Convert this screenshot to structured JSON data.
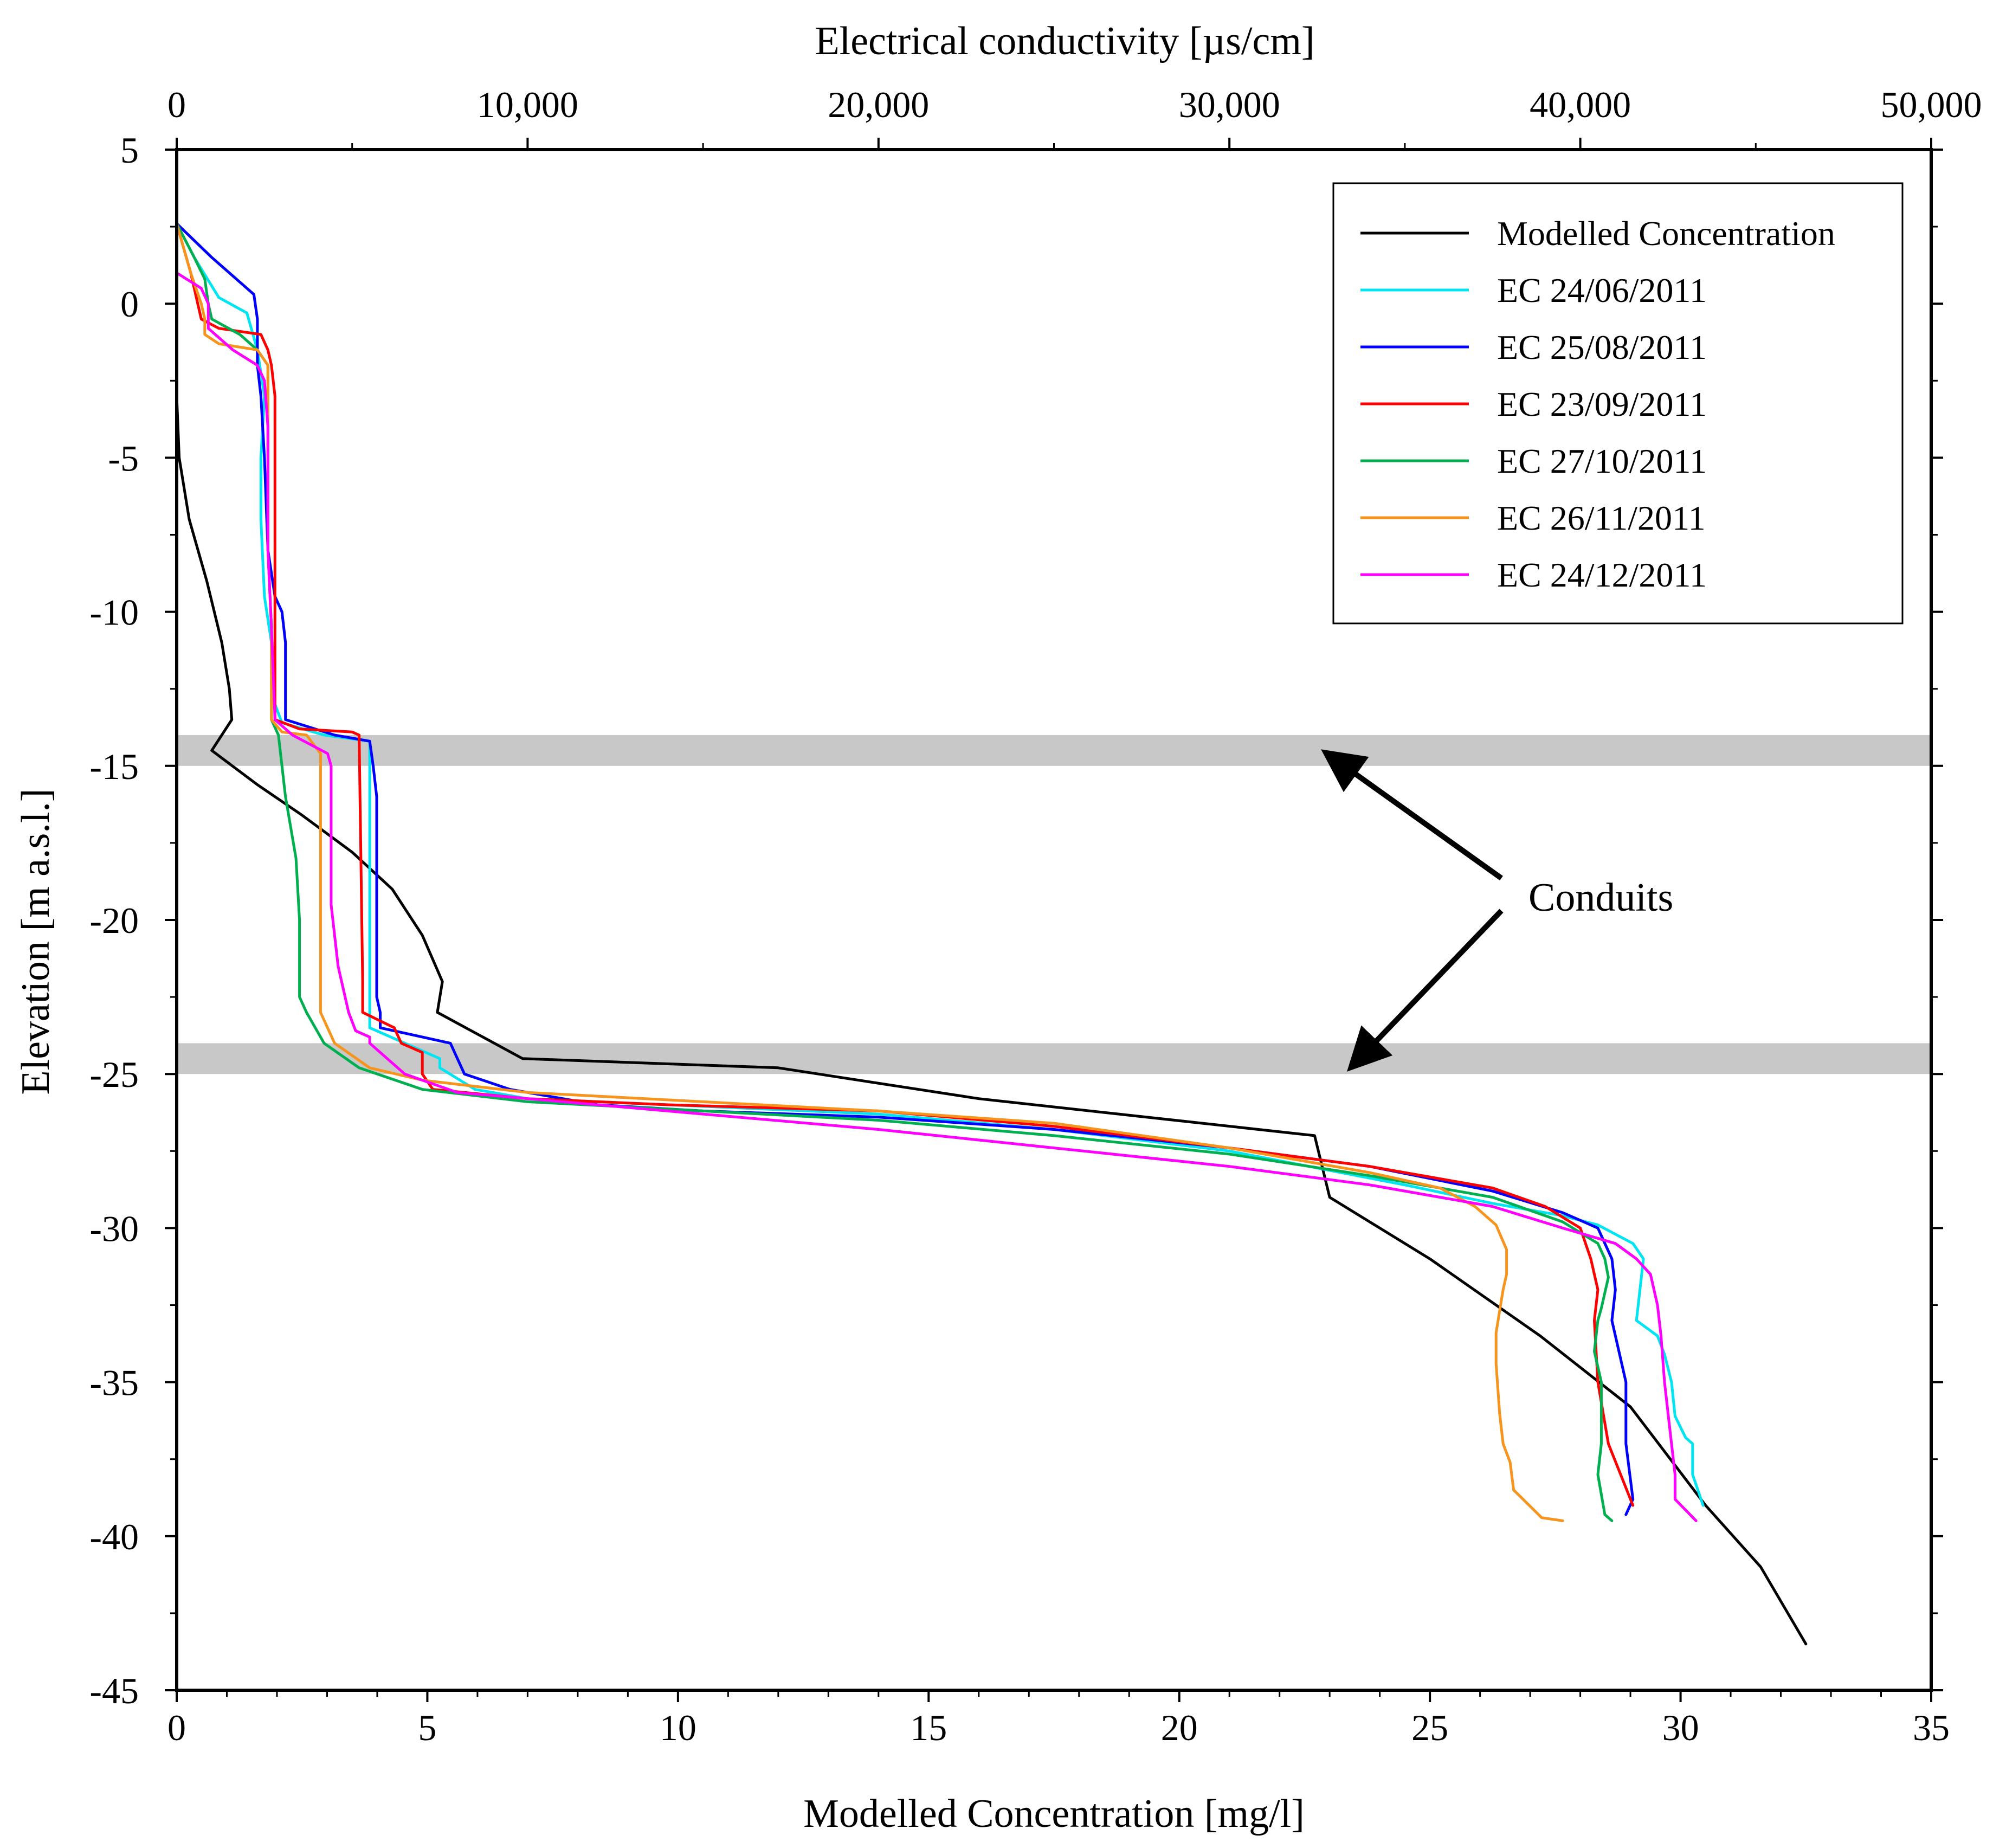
{
  "chart_data": {
    "type": "line",
    "x_bottom": {
      "label": "Modelled Concentration [mg/l]",
      "range": [
        0,
        35
      ],
      "ticks": [
        0,
        5,
        10,
        15,
        20,
        25,
        30,
        35
      ],
      "tick_labels": [
        "0",
        "5",
        "10",
        "15",
        "20",
        "25",
        "30",
        "35"
      ]
    },
    "x_top": {
      "label": "Electrical conductivity [µs/cm]",
      "range": [
        0,
        50000
      ],
      "ticks": [
        0,
        10000,
        20000,
        30000,
        40000,
        50000
      ],
      "tick_labels": [
        "0",
        "10,000",
        "20,000",
        "30,000",
        "40,000",
        "50,000"
      ]
    },
    "y": {
      "label": "Elevation [m a.s.l.]",
      "range": [
        -45,
        5
      ],
      "ticks": [
        5,
        0,
        -5,
        -10,
        -15,
        -20,
        -25,
        -30,
        -35,
        -40,
        -45
      ],
      "tick_labels": [
        "5",
        "0",
        "-5",
        "-10",
        "-15",
        "-20",
        "-25",
        "-30",
        "-35",
        "-40",
        "-45"
      ]
    },
    "legend_position": "top-right",
    "conduit_bands": [
      {
        "from": -15,
        "to": -14
      },
      {
        "from": -25,
        "to": -24
      }
    ],
    "annotation": {
      "text": "Conduits"
    },
    "series": [
      {
        "name": "Modelled Concentration",
        "axis": "bottom",
        "color": "#000000",
        "points": [
          [
            0,
            2.6
          ],
          [
            0,
            -3
          ],
          [
            0.05,
            -5
          ],
          [
            0.25,
            -7
          ],
          [
            0.6,
            -9
          ],
          [
            0.9,
            -11
          ],
          [
            1.05,
            -12.5
          ],
          [
            1.1,
            -13.5
          ],
          [
            0.7,
            -14.5
          ],
          [
            1.6,
            -15.6
          ],
          [
            2.5,
            -16.6
          ],
          [
            3.5,
            -17.8
          ],
          [
            4.3,
            -19
          ],
          [
            4.9,
            -20.5
          ],
          [
            5.3,
            -22
          ],
          [
            5.2,
            -23
          ],
          [
            6.9,
            -24.5
          ],
          [
            12,
            -24.8
          ],
          [
            16,
            -25.8
          ],
          [
            22.7,
            -27
          ],
          [
            23,
            -29
          ],
          [
            25,
            -31
          ],
          [
            27.2,
            -33.5
          ],
          [
            29,
            -35.8
          ],
          [
            30.5,
            -39
          ],
          [
            31.6,
            -41
          ],
          [
            32.5,
            -43.5
          ]
        ]
      },
      {
        "name": "EC 24/06/2011",
        "axis": "top",
        "color": "#00e5f2",
        "points": [
          [
            0,
            2.6
          ],
          [
            500,
            1.5
          ],
          [
            1200,
            0.2
          ],
          [
            2000,
            -0.3
          ],
          [
            2300,
            -1.5
          ],
          [
            2500,
            -3
          ],
          [
            2400,
            -5
          ],
          [
            2400,
            -7
          ],
          [
            2500,
            -9.5
          ],
          [
            2700,
            -11
          ],
          [
            2700,
            -12
          ],
          [
            2800,
            -13
          ],
          [
            3000,
            -13.6
          ],
          [
            4200,
            -14
          ],
          [
            5500,
            -14.2
          ],
          [
            5500,
            -23
          ],
          [
            5500,
            -23.5
          ],
          [
            7500,
            -24.5
          ],
          [
            7500,
            -24.8
          ],
          [
            8500,
            -25.5
          ],
          [
            10000,
            -25.8
          ],
          [
            14000,
            -26
          ],
          [
            20000,
            -26.3
          ],
          [
            25000,
            -26.8
          ],
          [
            30000,
            -27.5
          ],
          [
            35000,
            -28.6
          ],
          [
            37500,
            -29.2
          ],
          [
            39500,
            -29.6
          ],
          [
            40500,
            -29.9
          ],
          [
            41500,
            -30.5
          ],
          [
            41800,
            -31
          ],
          [
            41600,
            -33
          ],
          [
            42200,
            -33.5
          ],
          [
            42400,
            -34.1
          ],
          [
            42600,
            -35
          ],
          [
            42700,
            -36.1
          ],
          [
            43000,
            -36.8
          ],
          [
            43200,
            -37
          ],
          [
            43200,
            -38
          ],
          [
            43500,
            -39
          ]
        ]
      },
      {
        "name": "EC 25/08/2011",
        "axis": "top",
        "color": "#0000ff",
        "points": [
          [
            0,
            2.6
          ],
          [
            1000,
            1.5
          ],
          [
            2200,
            0.3
          ],
          [
            2300,
            -0.5
          ],
          [
            2300,
            -2
          ],
          [
            2400,
            -3
          ],
          [
            2500,
            -5
          ],
          [
            2600,
            -8
          ],
          [
            2800,
            -9.5
          ],
          [
            3000,
            -10
          ],
          [
            3100,
            -11
          ],
          [
            3100,
            -13.5
          ],
          [
            4500,
            -14
          ],
          [
            5500,
            -14.2
          ],
          [
            5600,
            -15
          ],
          [
            5700,
            -16
          ],
          [
            5700,
            -22.5
          ],
          [
            5800,
            -23
          ],
          [
            5800,
            -23.5
          ],
          [
            7800,
            -24
          ],
          [
            8000,
            -24.5
          ],
          [
            8200,
            -25
          ],
          [
            9500,
            -25.5
          ],
          [
            12000,
            -26
          ],
          [
            15000,
            -26.2
          ],
          [
            20000,
            -26.4
          ],
          [
            25000,
            -26.8
          ],
          [
            30000,
            -27.4
          ],
          [
            34000,
            -28
          ],
          [
            37500,
            -28.8
          ],
          [
            39500,
            -29.5
          ],
          [
            40500,
            -30
          ],
          [
            40900,
            -31
          ],
          [
            41000,
            -32
          ],
          [
            40900,
            -33
          ],
          [
            41300,
            -35
          ],
          [
            41300,
            -36
          ],
          [
            41300,
            -37
          ],
          [
            41500,
            -38.8
          ],
          [
            41300,
            -39.3
          ]
        ]
      },
      {
        "name": "EC 23/09/2011",
        "axis": "top",
        "color": "#ff0000",
        "points": [
          [
            0,
            2.6
          ],
          [
            400,
            1
          ],
          [
            700,
            -0.5
          ],
          [
            1200,
            -0.8
          ],
          [
            2400,
            -1
          ],
          [
            2600,
            -1.5
          ],
          [
            2700,
            -2
          ],
          [
            2800,
            -3
          ],
          [
            2800,
            -5
          ],
          [
            2800,
            -8
          ],
          [
            2800,
            -11
          ],
          [
            2800,
            -13.5
          ],
          [
            3500,
            -13.8
          ],
          [
            5000,
            -13.9
          ],
          [
            5200,
            -14
          ],
          [
            5300,
            -22
          ],
          [
            5300,
            -23
          ],
          [
            6200,
            -23.5
          ],
          [
            6400,
            -24
          ],
          [
            7000,
            -24.3
          ],
          [
            7000,
            -25
          ],
          [
            7300,
            -25.5
          ],
          [
            10000,
            -25.8
          ],
          [
            14000,
            -26
          ],
          [
            20000,
            -26.2
          ],
          [
            25000,
            -26.7
          ],
          [
            30000,
            -27.4
          ],
          [
            34000,
            -28
          ],
          [
            37500,
            -28.7
          ],
          [
            39000,
            -29.3
          ],
          [
            40000,
            -30
          ],
          [
            40300,
            -31
          ],
          [
            40500,
            -32
          ],
          [
            40400,
            -33
          ],
          [
            40500,
            -35
          ],
          [
            40800,
            -37
          ],
          [
            41500,
            -39
          ]
        ]
      },
      {
        "name": "EC 27/10/2011",
        "axis": "top",
        "color": "#00b050",
        "points": [
          [
            0,
            2.6
          ],
          [
            500,
            1.5
          ],
          [
            800,
            0.8
          ],
          [
            900,
            0
          ],
          [
            1000,
            -0.5
          ],
          [
            1800,
            -1
          ],
          [
            2300,
            -1.5
          ],
          [
            2600,
            -2
          ],
          [
            2600,
            -4
          ],
          [
            2600,
            -8
          ],
          [
            2700,
            -10.5
          ],
          [
            2700,
            -13.5
          ],
          [
            2900,
            -14
          ],
          [
            3100,
            -16
          ],
          [
            3400,
            -18
          ],
          [
            3500,
            -20
          ],
          [
            3500,
            -22.5
          ],
          [
            3700,
            -23
          ],
          [
            4200,
            -24
          ],
          [
            5200,
            -24.8
          ],
          [
            7000,
            -25.5
          ],
          [
            10000,
            -25.9
          ],
          [
            15000,
            -26.2
          ],
          [
            20000,
            -26.5
          ],
          [
            25000,
            -27
          ],
          [
            30000,
            -27.6
          ],
          [
            34000,
            -28.3
          ],
          [
            37500,
            -29
          ],
          [
            39500,
            -29.8
          ],
          [
            40500,
            -30.5
          ],
          [
            40700,
            -31
          ],
          [
            40800,
            -31.6
          ],
          [
            40600,
            -32.6
          ],
          [
            40500,
            -33
          ],
          [
            40400,
            -34
          ],
          [
            40600,
            -35
          ],
          [
            40600,
            -37
          ],
          [
            40500,
            -38
          ],
          [
            40700,
            -39.3
          ],
          [
            40900,
            -39.5
          ]
        ]
      },
      {
        "name": "EC 26/11/2011",
        "axis": "top",
        "color": "#f7941d",
        "points": [
          [
            0,
            2.6
          ],
          [
            400,
            1
          ],
          [
            700,
            0
          ],
          [
            800,
            -0.5
          ],
          [
            800,
            -1
          ],
          [
            1200,
            -1.3
          ],
          [
            2300,
            -1.5
          ],
          [
            2600,
            -2
          ],
          [
            2600,
            -4
          ],
          [
            2600,
            -8
          ],
          [
            2700,
            -10.5
          ],
          [
            2700,
            -13.5
          ],
          [
            3000,
            -13.9
          ],
          [
            3700,
            -14
          ],
          [
            4100,
            -14.6
          ],
          [
            4100,
            -22
          ],
          [
            4100,
            -23
          ],
          [
            4500,
            -24
          ],
          [
            5500,
            -24.8
          ],
          [
            7000,
            -25.2
          ],
          [
            10000,
            -25.6
          ],
          [
            15000,
            -25.9
          ],
          [
            20000,
            -26.2
          ],
          [
            25000,
            -26.6
          ],
          [
            30000,
            -27.4
          ],
          [
            34000,
            -28.2
          ],
          [
            36000,
            -28.7
          ],
          [
            37000,
            -29.3
          ],
          [
            37600,
            -29.9
          ],
          [
            37900,
            -30.7
          ],
          [
            37900,
            -31.5
          ],
          [
            37800,
            -32
          ],
          [
            37600,
            -33.4
          ],
          [
            37600,
            -34.4
          ],
          [
            37700,
            -36
          ],
          [
            37800,
            -37
          ],
          [
            38000,
            -37.6
          ],
          [
            38100,
            -38.5
          ],
          [
            38900,
            -39.4
          ],
          [
            39500,
            -39.5
          ]
        ]
      },
      {
        "name": "EC 24/12/2011",
        "axis": "top",
        "color": "#ff00ff",
        "points": [
          [
            0,
            2.6
          ],
          [
            0,
            1
          ],
          [
            700,
            0.5
          ],
          [
            900,
            0
          ],
          [
            900,
            -0.8
          ],
          [
            1600,
            -1.5
          ],
          [
            2300,
            -2
          ],
          [
            2500,
            -2.5
          ],
          [
            2600,
            -4
          ],
          [
            2600,
            -8
          ],
          [
            2700,
            -10.5
          ],
          [
            2800,
            -13.5
          ],
          [
            3300,
            -14
          ],
          [
            4300,
            -14.6
          ],
          [
            4400,
            -15
          ],
          [
            4400,
            -17
          ],
          [
            4400,
            -19.5
          ],
          [
            4600,
            -21.5
          ],
          [
            4900,
            -23
          ],
          [
            5100,
            -23.6
          ],
          [
            5500,
            -23.8
          ],
          [
            5500,
            -24
          ],
          [
            6500,
            -25
          ],
          [
            8000,
            -25.6
          ],
          [
            11000,
            -25.9
          ],
          [
            15000,
            -26.3
          ],
          [
            20000,
            -26.8
          ],
          [
            25000,
            -27.4
          ],
          [
            30000,
            -28
          ],
          [
            34000,
            -28.6
          ],
          [
            37500,
            -29.3
          ],
          [
            39500,
            -30
          ],
          [
            41000,
            -30.5
          ],
          [
            41600,
            -31
          ],
          [
            42000,
            -31.5
          ],
          [
            42200,
            -32.5
          ],
          [
            42300,
            -33.5
          ],
          [
            42400,
            -35
          ],
          [
            42500,
            -36
          ],
          [
            42600,
            -37
          ],
          [
            42700,
            -38
          ],
          [
            42700,
            -38.8
          ],
          [
            43300,
            -39.5
          ]
        ]
      }
    ]
  }
}
